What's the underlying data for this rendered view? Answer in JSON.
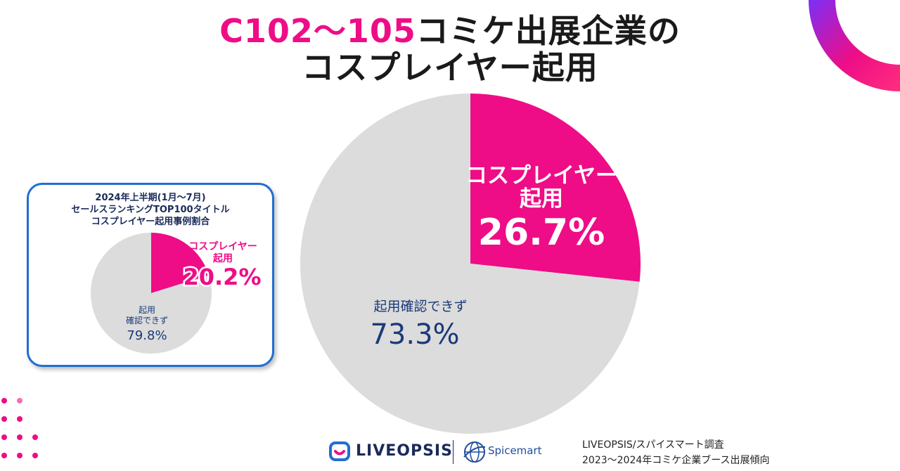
{
  "title": {
    "accent": "C102〜105",
    "line1_rest": "コミケ出展企業の",
    "line2": "コスプレイヤー起用"
  },
  "chart_data": [
    {
      "type": "pie",
      "categories": [
        "コスプレイヤー起用",
        "起用確認できず"
      ],
      "values": [
        26.7,
        73.3
      ],
      "value_labels": [
        "26.7%",
        "73.3%"
      ],
      "slice_label_lines": [
        [
          "コスプレイヤー",
          "起用"
        ],
        [
          "起用確認できず"
        ]
      ],
      "colors": [
        "#ee0d86",
        "#dcdcdc"
      ],
      "label_colors": [
        "#ffffff",
        "#1a3a7a"
      ]
    },
    {
      "type": "pie",
      "title_lines": [
        "2024年上半期(1月〜7月)",
        "セールスランキングTOP100タイトル",
        "コスプレイヤー起用事例割合"
      ],
      "categories": [
        "コスプレイヤー起用",
        "起用確認できず"
      ],
      "values": [
        20.2,
        79.8
      ],
      "value_labels": [
        "20.2%",
        "79.8%"
      ],
      "slice_label_lines": [
        [
          "コスプレイヤー",
          "起用"
        ],
        [
          "起用",
          "確認できず"
        ]
      ],
      "colors": [
        "#ee0d86",
        "#dcdcdc"
      ],
      "label_colors": [
        "#ee0d86",
        "#1a3a7a"
      ]
    }
  ],
  "footer": {
    "logo1": "LIVEOPSIS",
    "logo2": "Spicemart",
    "source_line1": "LIVEOPSIS/スパイスマート調査",
    "source_line2": "2023〜2024年コミケ企業ブース出展傾向"
  },
  "colors": {
    "accent_pink": "#ee0d86",
    "navy": "#1a3a7a",
    "inset_border": "#1f6fd1",
    "corner_purple": "#7b2ff7"
  }
}
